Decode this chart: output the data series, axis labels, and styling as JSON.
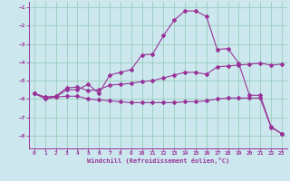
{
  "xlabel": "Windchill (Refroidissement éolien,°C)",
  "bg_color": "#cce8ee",
  "grid_color": "#99ccbb",
  "line_color": "#993399",
  "xlim": [
    -0.5,
    23.5
  ],
  "ylim": [
    -8.7,
    -0.7
  ],
  "yticks": [
    -8,
    -7,
    -6,
    -5,
    -4,
    -3,
    -2,
    -1
  ],
  "xticks": [
    0,
    1,
    2,
    3,
    4,
    5,
    6,
    7,
    8,
    9,
    10,
    11,
    12,
    13,
    14,
    15,
    16,
    17,
    18,
    19,
    20,
    21,
    22,
    23
  ],
  "line1_x": [
    0,
    1,
    2,
    3,
    4,
    5,
    6,
    7,
    8,
    9,
    10,
    11,
    12,
    13,
    14,
    15,
    16,
    17,
    18,
    19,
    20,
    21,
    22,
    23
  ],
  "line1_y": [
    -5.7,
    -6.0,
    -5.9,
    -5.5,
    -5.5,
    -5.2,
    -5.7,
    -4.7,
    -4.55,
    -4.4,
    -3.6,
    -3.55,
    -2.55,
    -1.7,
    -1.2,
    -1.2,
    -1.5,
    -3.3,
    -3.25,
    -4.05,
    -5.8,
    -5.8,
    -7.5,
    -7.9
  ],
  "line2_x": [
    0,
    1,
    2,
    3,
    4,
    5,
    6,
    7,
    8,
    9,
    10,
    11,
    12,
    13,
    14,
    15,
    16,
    17,
    18,
    19,
    20,
    21,
    22,
    23
  ],
  "line2_y": [
    -5.7,
    -5.9,
    -5.85,
    -5.4,
    -5.35,
    -5.55,
    -5.5,
    -5.25,
    -5.2,
    -5.15,
    -5.05,
    -5.0,
    -4.85,
    -4.7,
    -4.55,
    -4.55,
    -4.65,
    -4.25,
    -4.2,
    -4.15,
    -4.1,
    -4.05,
    -4.15,
    -4.1
  ],
  "line3_x": [
    0,
    1,
    2,
    3,
    4,
    5,
    6,
    7,
    8,
    9,
    10,
    11,
    12,
    13,
    14,
    15,
    16,
    17,
    18,
    19,
    20,
    21,
    22,
    23
  ],
  "line3_y": [
    -5.7,
    -5.9,
    -5.9,
    -5.85,
    -5.85,
    -6.0,
    -6.05,
    -6.1,
    -6.15,
    -6.2,
    -6.2,
    -6.2,
    -6.2,
    -6.2,
    -6.15,
    -6.15,
    -6.1,
    -6.0,
    -5.95,
    -5.95,
    -5.95,
    -5.95,
    -7.55,
    -7.9
  ]
}
